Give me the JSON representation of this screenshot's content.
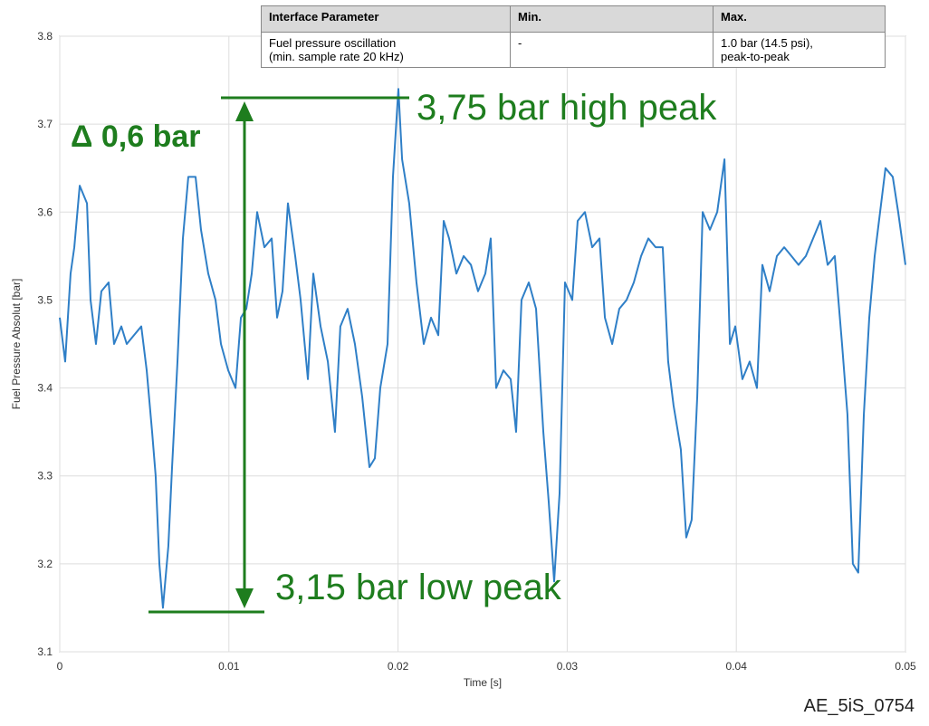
{
  "chart_data": {
    "type": "line",
    "x_label": "Time [s]",
    "y_label": "Fuel Pressure Absolut [bar]",
    "xlim": [
      0,
      0.05
    ],
    "ylim": [
      3.1,
      3.8
    ],
    "xticks": [
      0,
      0.01,
      0.02,
      0.03,
      0.04,
      0.05
    ],
    "yticks": [
      3.1,
      3.2,
      3.3,
      3.4,
      3.5,
      3.6,
      3.7,
      3.8
    ],
    "grid": true,
    "x": [
      0,
      0.00032,
      0.00064,
      0.00086,
      0.00118,
      0.00161,
      0.00182,
      0.00214,
      0.00246,
      0.00289,
      0.00321,
      0.00364,
      0.00396,
      0.00439,
      0.00482,
      0.00514,
      0.00546,
      0.00567,
      0.00589,
      0.0061,
      0.00642,
      0.00664,
      0.00696,
      0.00728,
      0.0076,
      0.00803,
      0.00835,
      0.00878,
      0.00921,
      0.00953,
      0.00996,
      0.01039,
      0.01071,
      0.01103,
      0.01135,
      0.01167,
      0.0121,
      0.01253,
      0.01285,
      0.01317,
      0.01349,
      0.01392,
      0.01424,
      0.01467,
      0.01499,
      0.01542,
      0.01585,
      0.01627,
      0.01659,
      0.01702,
      0.01745,
      0.01788,
      0.01831,
      0.01863,
      0.01895,
      0.01938,
      0.0197,
      0.02002,
      0.02024,
      0.02066,
      0.02109,
      0.02152,
      0.02195,
      0.02238,
      0.0227,
      0.02302,
      0.02345,
      0.02388,
      0.02431,
      0.02473,
      0.02516,
      0.02548,
      0.0258,
      0.02623,
      0.02666,
      0.02698,
      0.0273,
      0.02773,
      0.02816,
      0.02859,
      0.02891,
      0.02923,
      0.02955,
      0.02987,
      0.0303,
      0.03062,
      0.03105,
      0.03148,
      0.03191,
      0.03223,
      0.03266,
      0.03308,
      0.03351,
      0.03394,
      0.03437,
      0.0348,
      0.03523,
      0.03565,
      0.03597,
      0.03629,
      0.03672,
      0.03704,
      0.03736,
      0.03769,
      0.03801,
      0.03844,
      0.03887,
      0.0393,
      0.03962,
      0.03994,
      0.04036,
      0.04079,
      0.04122,
      0.04154,
      0.04197,
      0.0424,
      0.04283,
      0.04326,
      0.04368,
      0.04411,
      0.04454,
      0.04497,
      0.0454,
      0.04582,
      0.04625,
      0.04657,
      0.04689,
      0.04721,
      0.04754,
      0.04786,
      0.04818,
      0.0485,
      0.04882,
      0.04925,
      0.04957,
      0.05
    ],
    "series": [
      {
        "color": "#2f7fc7",
        "values": [
          3.48,
          3.43,
          3.53,
          3.56,
          3.63,
          3.61,
          3.5,
          3.45,
          3.51,
          3.52,
          3.45,
          3.47,
          3.45,
          3.46,
          3.47,
          3.42,
          3.35,
          3.3,
          3.2,
          3.15,
          3.22,
          3.31,
          3.43,
          3.57,
          3.64,
          3.64,
          3.58,
          3.53,
          3.5,
          3.45,
          3.42,
          3.4,
          3.48,
          3.49,
          3.53,
          3.6,
          3.56,
          3.57,
          3.48,
          3.51,
          3.61,
          3.55,
          3.5,
          3.41,
          3.53,
          3.47,
          3.43,
          3.35,
          3.47,
          3.49,
          3.45,
          3.39,
          3.31,
          3.32,
          3.4,
          3.45,
          3.64,
          3.74,
          3.66,
          3.61,
          3.52,
          3.45,
          3.48,
          3.46,
          3.59,
          3.57,
          3.53,
          3.55,
          3.54,
          3.51,
          3.53,
          3.57,
          3.4,
          3.42,
          3.41,
          3.35,
          3.5,
          3.52,
          3.49,
          3.35,
          3.27,
          3.18,
          3.28,
          3.52,
          3.5,
          3.59,
          3.6,
          3.56,
          3.57,
          3.48,
          3.45,
          3.49,
          3.5,
          3.52,
          3.55,
          3.57,
          3.56,
          3.56,
          3.43,
          3.38,
          3.33,
          3.23,
          3.25,
          3.39,
          3.6,
          3.58,
          3.6,
          3.66,
          3.45,
          3.47,
          3.41,
          3.43,
          3.4,
          3.54,
          3.51,
          3.55,
          3.56,
          3.55,
          3.54,
          3.55,
          3.57,
          3.59,
          3.54,
          3.55,
          3.45,
          3.37,
          3.2,
          3.19,
          3.37,
          3.48,
          3.55,
          3.6,
          3.65,
          3.64,
          3.6,
          3.54
        ]
      }
    ],
    "annotations": [
      "3,75 bar high peak",
      "3,15 bar low peak",
      "Δ 0,6 bar"
    ]
  },
  "table": {
    "header": [
      "Interface Parameter",
      "Min.",
      "Max."
    ],
    "rows": [
      [
        "Fuel pressure oscillation\n(min. sample rate 20 kHz)",
        "-",
        "1.0 bar (14.5 psi),\npeak-to-peak"
      ]
    ]
  },
  "figure_id": "AE_5iS_0754"
}
